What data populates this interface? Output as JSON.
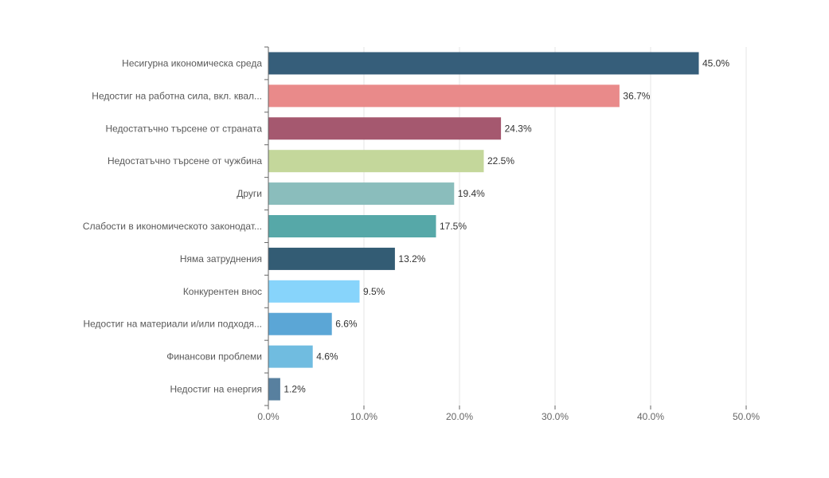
{
  "chart_data": {
    "type": "bar",
    "orientation": "horizontal",
    "categories": [
      "Несигурна икономическа среда",
      "Недостиг на работна сила, вкл. квал...",
      "Недостатъчно търсене от страната",
      "Недостатъчно търсене от чужбина",
      "Други",
      "Слабости в икономическото законодат...",
      "Няма затруднения",
      "Конкурентен внос",
      "Недостиг на материали и/или подходя...",
      "Финансови проблеми",
      "Недостиг на енергия"
    ],
    "values": [
      45.0,
      36.7,
      24.3,
      22.5,
      19.4,
      17.5,
      13.2,
      9.5,
      6.6,
      4.6,
      1.2
    ],
    "value_labels": [
      "45.0%",
      "36.7%",
      "24.3%",
      "22.5%",
      "19.4%",
      "17.5%",
      "13.2%",
      "9.5%",
      "6.6%",
      "4.6%",
      "1.2%"
    ],
    "colors": [
      "#365e7a",
      "#e98a8a",
      "#a5586f",
      "#c4d79b",
      "#8abdbc",
      "#56a8a8",
      "#335c74",
      "#87d4fb",
      "#5ba6d6",
      "#70bce0",
      "#58809f"
    ],
    "xlim": [
      0,
      50
    ],
    "x_ticks": [
      0,
      10,
      20,
      30,
      40,
      50
    ],
    "x_tick_labels": [
      "0.0%",
      "10.0%",
      "20.0%",
      "30.0%",
      "40.0%",
      "50.0%"
    ],
    "grid": true,
    "title": "",
    "xlabel": "",
    "ylabel": ""
  }
}
